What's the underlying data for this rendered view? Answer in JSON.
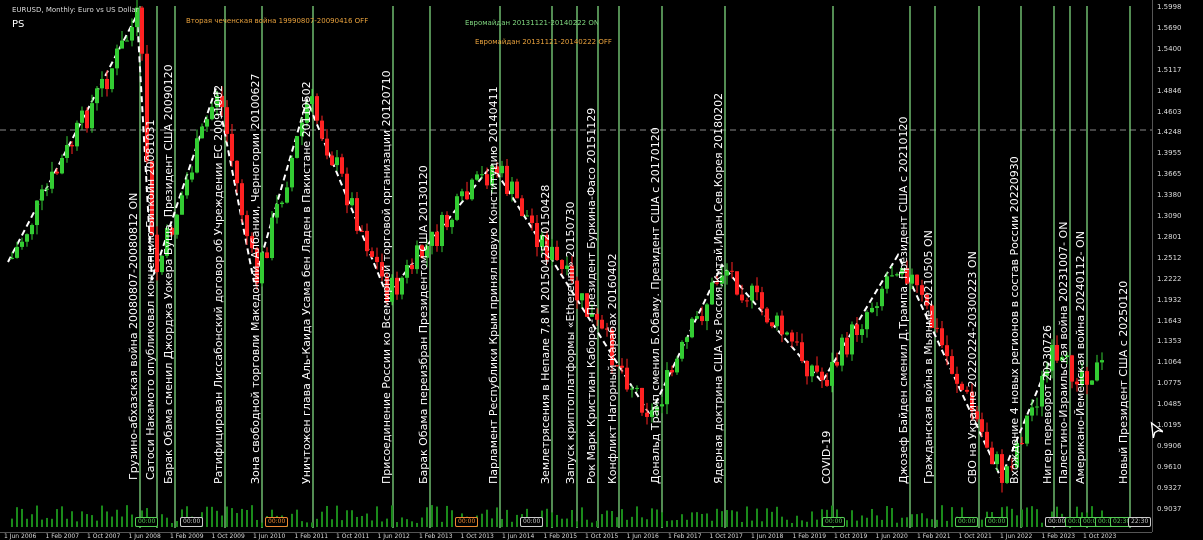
{
  "header": {
    "symbol_line": "EURUSD, Monthly:  Euro vs US Dollar",
    "ps": "PS",
    "war_label": "Вторая чеченская война 19990807-20090416 OFF",
    "maidan_on": "Евромайдан 20131121-20140222 ON",
    "maidan_off": "Евромайдан 20131121-20140222 OFF"
  },
  "colors": {
    "bull": "#33cc33",
    "bear": "#ff2222",
    "event_line": "#7fd67f",
    "zigzag": "#ffffff",
    "volume": "#1a8a1a"
  },
  "events": [
    {
      "label": "Грузино-абхазская война 20080807-20080812 ON"
    },
    {
      "label": "Сатоси Накамото опубликовал концепцию Биткойн 20081031"
    },
    {
      "label": "Барак Обама сменил Джорджа Уокера Буша. Президент США 20090120"
    },
    {
      "label": "Ратифицирован Лиссабонский договор об Учреждении ЕС 20091002"
    },
    {
      "label": "Зона свободной торговли Македонии, Албании, Черногории 20100627"
    },
    {
      "label": "Уничтожен глава Аль-Каида Усама бен Ладен в Пакистане 20110502"
    },
    {
      "label": "Присоединение России ко Всемирной торговой организации 20120710"
    },
    {
      "label": "Барак Обама переизбран Президентом США 20130120"
    },
    {
      "label": "Парламент Республики Крым принял новую Конституцию 20140411"
    },
    {
      "label": "Землетрясения в Непале 7,8 М 20150425-20150428"
    },
    {
      "label": "Запуск криптоплатформы «Ethereum» 20150730"
    },
    {
      "label": "Рок Марк Кристиан Каборе - Президент Буркина-Фасо 20151129"
    },
    {
      "label": "Конфликт Нагорный Карабах 20160402"
    },
    {
      "label": "Дональд Трамп сменил Б.Обаму. Президент США с 20170120"
    },
    {
      "label": "Ядерная доктрина США vs Россия,Китай,Иран,Сев.Корея 20180202"
    },
    {
      "label": "COVID-19"
    },
    {
      "label": "Джозеф Байден сменил Д.Трампа. Президент США с 20210120"
    },
    {
      "label": "Гражданская война в Мьянме 20210505 ON"
    },
    {
      "label": "СВО на Украине 20220224-20300223 ON"
    },
    {
      "label": "Вхождение 4 новых регионов в состав России 20220930"
    },
    {
      "label": "Нигер переворот 20230726"
    },
    {
      "label": "Палестино-Израильская война 20231007- ON"
    },
    {
      "label": "Американо-Йеменская война 20240112- ON"
    },
    {
      "label": "Новый Президент США с 20250120"
    }
  ],
  "y_axis": [
    "1.5998",
    "1.5690",
    "1.5400",
    "1.5117",
    "1.4846",
    "1.4603",
    "1.4248",
    "1.3955",
    "1.3665",
    "1.3380",
    "1.3090",
    "1.2801",
    "1.2512",
    "1.2222",
    "1.1932",
    "1.1643",
    "1.1353",
    "1.1064",
    "1.0775",
    "1.0485",
    "1.0195",
    "0.9906",
    "0.9610",
    "0.9327",
    "0.9037"
  ],
  "x_axis": [
    "1 Jun 2006",
    "1 Feb 2007",
    "1 Oct 2007",
    "1 Jun 2008",
    "1 Feb 2009",
    "1 Oct 2009",
    "1 Jun 2010",
    "1 Feb 2011",
    "1 Oct 2011",
    "1 Jun 2012",
    "1 Feb 2013",
    "1 Oct 2013",
    "1 Jun 2014",
    "1 Feb 2015",
    "1 Oct 2015",
    "1 Jun 2016",
    "1 Feb 2017",
    "1 Oct 2017",
    "1 Jun 2018",
    "1 Feb 2019",
    "1 Oct 2019",
    "1 Jun 2020",
    "1 Feb 2021",
    "1 Oct 2021",
    "1 Jun 2022",
    "1 Feb 2023",
    "1 Oct 2023"
  ],
  "tags": [
    {
      "text": "00:00",
      "style": "green"
    },
    {
      "text": "00:00",
      "style": "white"
    },
    {
      "text": "00:00",
      "style": "orange"
    },
    {
      "text": "00:00",
      "style": "orange"
    },
    {
      "text": "00:00",
      "style": "white"
    },
    {
      "text": "00:00",
      "style": "green"
    },
    {
      "text": "00:00",
      "style": "green"
    },
    {
      "text": "00:00",
      "style": "green"
    },
    {
      "text": "00:00",
      "style": "white"
    },
    {
      "text": "00:00",
      "style": "green"
    },
    {
      "text": "00:00",
      "style": "green"
    },
    {
      "text": "00:00",
      "style": "green"
    },
    {
      "text": "02:30",
      "style": "green"
    },
    {
      "text": "22:30",
      "style": "white"
    }
  ]
}
